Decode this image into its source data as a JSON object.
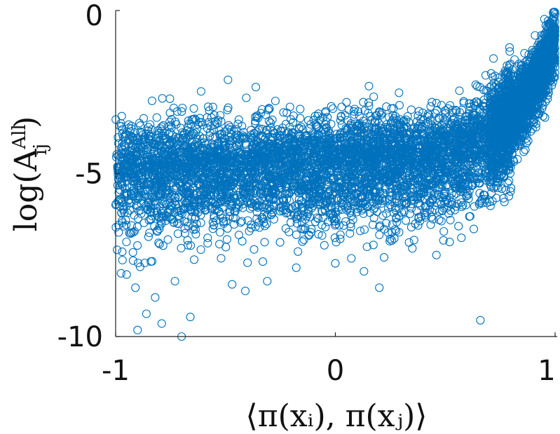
{
  "chart_data": {
    "type": "scatter",
    "title": "",
    "xlabel": "⟨π(xᵢ), π(xⱼ)⟩",
    "ylabel_main": "log(A",
    "ylabel_sub": "ij",
    "ylabel_sup": "All",
    "ylabel_close": ")",
    "xlim": [
      -1,
      1
    ],
    "ylim": [
      -10,
      0
    ],
    "x_ticks": [
      -1,
      0,
      1
    ],
    "x_tick_labels": [
      "-1",
      "0",
      "1"
    ],
    "y_ticks": [
      -10,
      -5,
      0
    ],
    "y_tick_labels": [
      "-10",
      "-5",
      "0"
    ],
    "grid": false,
    "marker": "open-circle",
    "marker_color": "#0072BD",
    "series": [
      {
        "approx_point_count": 7000,
        "x": [
          -0.99,
          -0.98,
          -0.96,
          -0.95,
          -0.93,
          -0.92,
          -0.9,
          -0.88,
          -0.85,
          -0.83,
          -0.8,
          -0.78,
          -0.75,
          -0.72,
          -0.7,
          -0.67,
          -0.64,
          -0.6,
          -0.56,
          -0.52,
          -0.48,
          -0.45,
          -0.42,
          -0.38,
          -0.35,
          -0.3,
          -0.26,
          -0.22,
          -0.18,
          -0.14,
          -0.1,
          -0.06,
          -0.02,
          0.02,
          0.06,
          0.1,
          0.14,
          0.18,
          0.22,
          0.26,
          0.3,
          0.34,
          0.38,
          0.42,
          0.46,
          0.5,
          0.54,
          0.58,
          0.62,
          0.66,
          0.7,
          0.74,
          0.78,
          0.82,
          0.86,
          0.9,
          0.93,
          0.96,
          0.98,
          0.99,
          -0.97,
          -0.95,
          -0.91,
          -0.86,
          -0.82,
          -0.79,
          -0.9,
          -0.84,
          -0.73,
          -0.7,
          -0.66,
          -0.52,
          -0.47,
          -0.41,
          -0.33,
          -0.31,
          -0.12,
          -0.05,
          0.13,
          0.2,
          0.29,
          0.46,
          0.52,
          0.63,
          0.66,
          0.69,
          0.74,
          0.8,
          0.85,
          0.91,
          0.94,
          0.97
        ],
        "y": [
          -4.8,
          -5.5,
          -6.2,
          -4.5,
          -5.0,
          -6.8,
          -5.3,
          -4.2,
          -5.8,
          -4.9,
          -5.6,
          -4.4,
          -6.0,
          -5.1,
          -4.7,
          -5.4,
          -4.6,
          -5.2,
          -4.9,
          -5.5,
          -4.8,
          -4.5,
          -5.0,
          -5.3,
          -4.6,
          -5.1,
          -4.7,
          -5.4,
          -4.9,
          -4.8,
          -5.2,
          -4.6,
          -4.9,
          -4.7,
          -5.0,
          -4.5,
          -4.8,
          -4.4,
          -4.7,
          -4.6,
          -4.3,
          -4.6,
          -4.2,
          -4.4,
          -4.1,
          -4.0,
          -4.2,
          -3.8,
          -3.9,
          -3.6,
          -3.5,
          -3.2,
          -3.0,
          -2.6,
          -2.3,
          -1.9,
          -1.6,
          -1.3,
          -1.2,
          -1.4,
          -7.4,
          -8.1,
          -8.5,
          -9.3,
          -8.8,
          -9.6,
          -9.8,
          -7.7,
          -8.3,
          -10.0,
          -9.4,
          -7.6,
          -8.4,
          -8.6,
          -7.7,
          -8.3,
          -6.9,
          -7.2,
          -8.0,
          -8.5,
          -6.8,
          -7.5,
          -7.1,
          -6.7,
          -9.5,
          -5.9,
          -2.8,
          -2.2,
          -2.0,
          -1.7,
          -1.2,
          -0.4
        ]
      }
    ]
  }
}
